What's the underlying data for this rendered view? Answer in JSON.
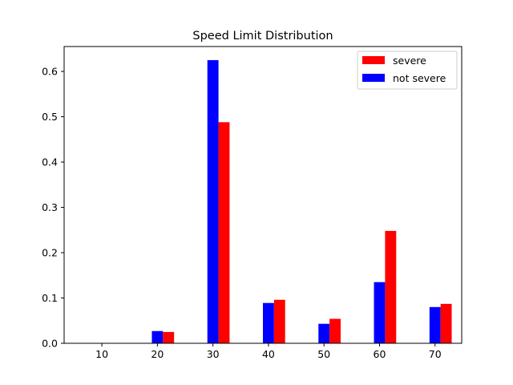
{
  "chart_data": {
    "type": "bar",
    "title": "Speed Limit Distribution",
    "xlabel": "",
    "ylabel": "",
    "categories": [
      "10",
      "20",
      "30",
      "40",
      "50",
      "60",
      "70"
    ],
    "x": [
      10,
      20,
      30,
      40,
      50,
      60,
      70
    ],
    "series": [
      {
        "name": "not severe",
        "color": "#0000ff",
        "values": [
          0.0,
          0.027,
          0.625,
          0.089,
          0.043,
          0.135,
          0.08
        ]
      },
      {
        "name": "severe",
        "color": "#ff0000",
        "values": [
          0.0,
          0.025,
          0.488,
          0.096,
          0.054,
          0.248,
          0.087
        ]
      }
    ],
    "ylim": [
      0,
      0.655
    ],
    "yticks": [
      0.0,
      0.1,
      0.2,
      0.3,
      0.4,
      0.5,
      0.6
    ],
    "ytick_labels": [
      "0.0",
      "0.1",
      "0.2",
      "0.3",
      "0.4",
      "0.5",
      "0.6"
    ],
    "grid": false,
    "legend": {
      "placement": "top-right",
      "entries": [
        {
          "label": "severe",
          "color": "#ff0000"
        },
        {
          "label": "not severe",
          "color": "#0000ff"
        }
      ]
    }
  }
}
